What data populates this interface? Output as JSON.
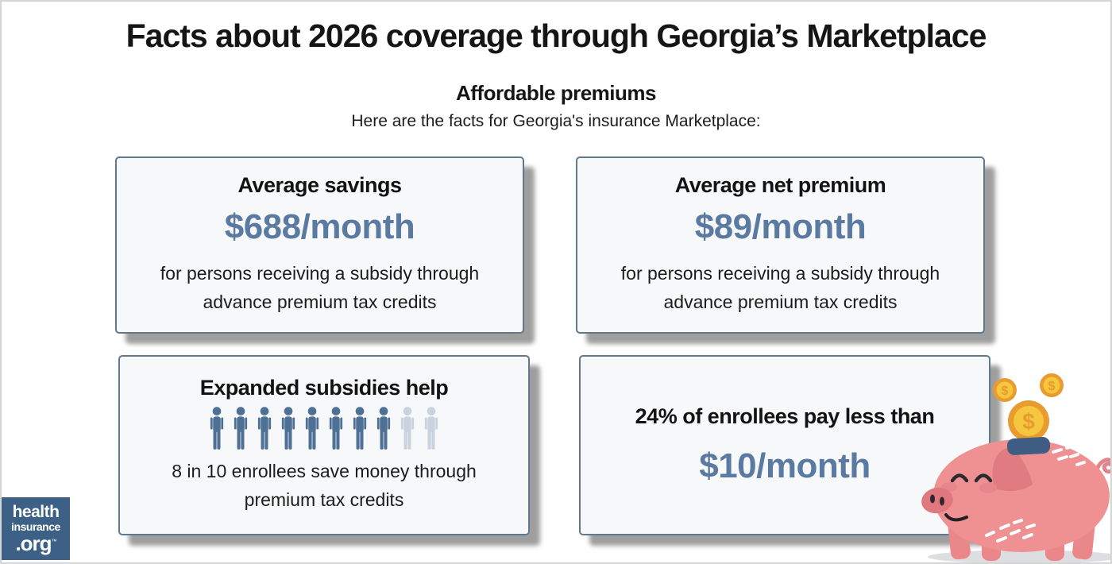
{
  "page": {
    "title": "Facts about 2026 coverage through Georgia’s Marketplace",
    "subtitle": "Affordable premiums",
    "intro": "Here are the facts for Georgia's insurance Marketplace:"
  },
  "cards": [
    {
      "heading": "Average savings",
      "value": "$688/month",
      "description": "for persons receiving a subsidy through advance premium tax credits"
    },
    {
      "heading": "Average net premium",
      "value": "$89/month",
      "description": "for persons receiving a subsidy through advance premium tax credits"
    },
    {
      "heading": "Expanded subsidies help",
      "description": "8 in 10 enrollees save money through premium tax credits",
      "pictograph": {
        "total": 10,
        "highlighted": 8
      }
    },
    {
      "heading": "24% of enrollees pay less than",
      "value": "$10/month"
    }
  ],
  "logo": {
    "line1": "health",
    "line2": "insurance",
    "line3": ".org",
    "trademark": "™"
  },
  "illustration": {
    "name": "piggy-bank-with-coins",
    "coin_symbol": "$"
  },
  "colors": {
    "accent_blue": "#5b7aa1",
    "card_border": "#62788d",
    "card_background": "#f7f8f9",
    "logo_background": "#3d6186",
    "person_active": "#4e7095",
    "person_inactive": "#c9d3dd",
    "pig_pink": "#ef9092",
    "pig_dark_pink": "#e07b82",
    "coin_outer": "#e89b2e",
    "coin_inner": "#f5c63e",
    "slot_navy": "#3f5c82"
  }
}
